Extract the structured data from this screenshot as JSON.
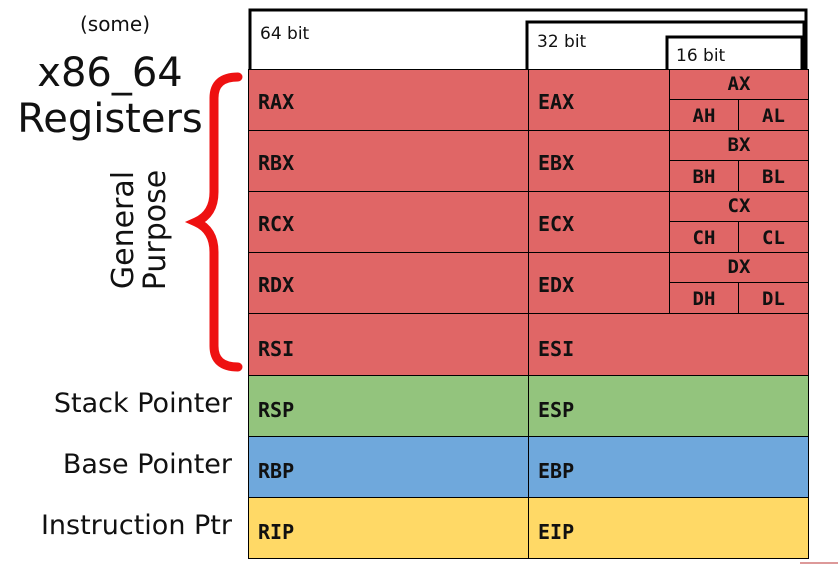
{
  "title": {
    "prefix": "(some)",
    "line1": "x86_64",
    "line2": "Registers"
  },
  "brace_label": {
    "line1": "General",
    "line2": "Purpose"
  },
  "colors": {
    "general": "#e06666",
    "stack": "#93c47d",
    "base": "#6fa8dc",
    "instr": "#ffd966",
    "brace": "#ee1111"
  },
  "width_headers": [
    "64 bit",
    "32 bit",
    "16 bit"
  ],
  "general_registers": [
    {
      "r64": "RAX",
      "r32": "EAX",
      "r16": "AX",
      "hi": "AH",
      "lo": "AL"
    },
    {
      "r64": "RBX",
      "r32": "EBX",
      "r16": "BX",
      "hi": "BH",
      "lo": "BL"
    },
    {
      "r64": "RCX",
      "r32": "ECX",
      "r16": "CX",
      "hi": "CH",
      "lo": "CL"
    },
    {
      "r64": "RDX",
      "r32": "EDX",
      "r16": "DX",
      "hi": "DH",
      "lo": "DL"
    },
    {
      "r64": "RSI",
      "r32": "ESI"
    }
  ],
  "special_registers": [
    {
      "label": "Stack Pointer",
      "r64": "RSP",
      "r32": "ESP",
      "color": "stack"
    },
    {
      "label": "Base Pointer",
      "r64": "RBP",
      "r32": "EBP",
      "color": "base"
    },
    {
      "label": "Instruction Ptr",
      "r64": "RIP",
      "r32": "EIP",
      "color": "instr"
    }
  ]
}
